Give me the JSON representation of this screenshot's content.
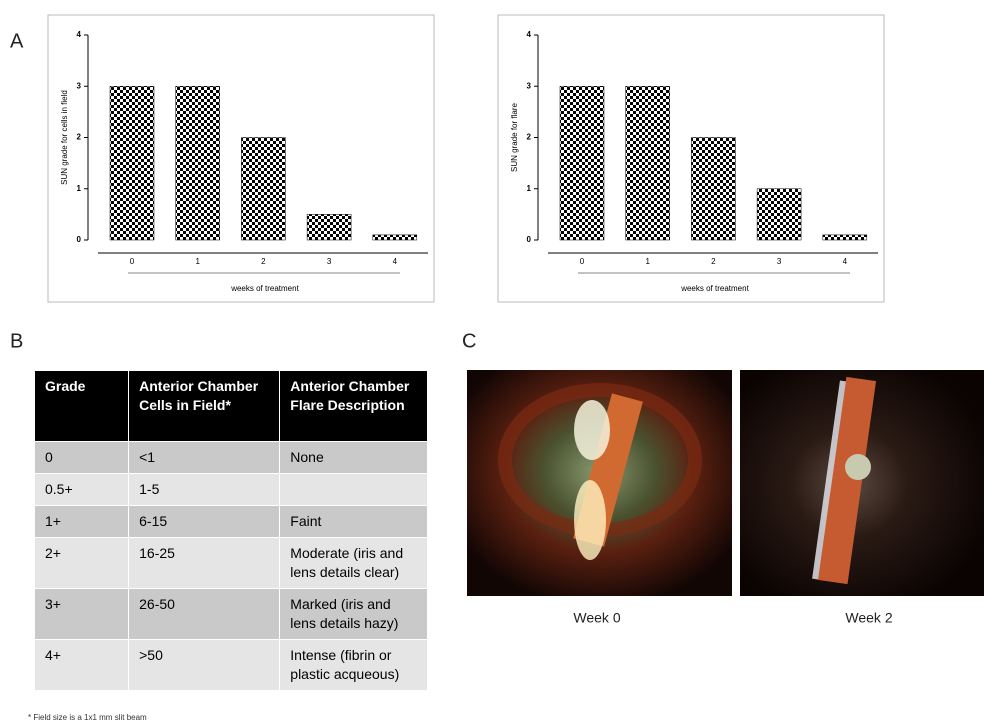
{
  "panels": [
    "A",
    "B",
    "C"
  ],
  "chart_data": [
    {
      "type": "bar",
      "ylabel": "SUN grade for cells in field",
      "xlabel": "weeks of treatment",
      "categories": [
        "0",
        "1",
        "2",
        "3",
        "4"
      ],
      "values": [
        3,
        3,
        2,
        0.5,
        0.1
      ],
      "color": "#000000",
      "ylim": [
        0,
        4
      ],
      "yticks": [
        0,
        1,
        2,
        3,
        4
      ]
    },
    {
      "type": "bar",
      "ylabel": "SUN grade for flare",
      "xlabel": "weeks of treatment",
      "categories": [
        "0",
        "1",
        "2",
        "3",
        "4"
      ],
      "values": [
        3,
        3,
        2,
        1,
        0.1
      ],
      "color": "#000000",
      "ylim": [
        0,
        4
      ],
      "yticks": [
        0,
        1,
        2,
        3,
        4
      ]
    }
  ],
  "table": {
    "header": [
      "Grade",
      "Anterior Chamber Cells in Field*",
      "Anterior Chamber Flare Description"
    ],
    "rows": [
      [
        "0",
        "<1",
        "None"
      ],
      [
        "0.5+",
        "1-5",
        null
      ],
      [
        "1+",
        "6-15",
        "Faint"
      ],
      [
        "2+",
        "16-25",
        "Moderate (iris and lens details clear)"
      ],
      [
        "3+",
        "26-50",
        "Marked (iris and lens details hazy)"
      ],
      [
        "4+",
        ">50",
        "Intense (fibrin or plastic acqueous)"
      ]
    ],
    "footnote": "* Field size is a 1x1 mm slit beam"
  },
  "images": [
    {
      "caption": "Week 0"
    },
    {
      "caption": "Week 2"
    }
  ]
}
